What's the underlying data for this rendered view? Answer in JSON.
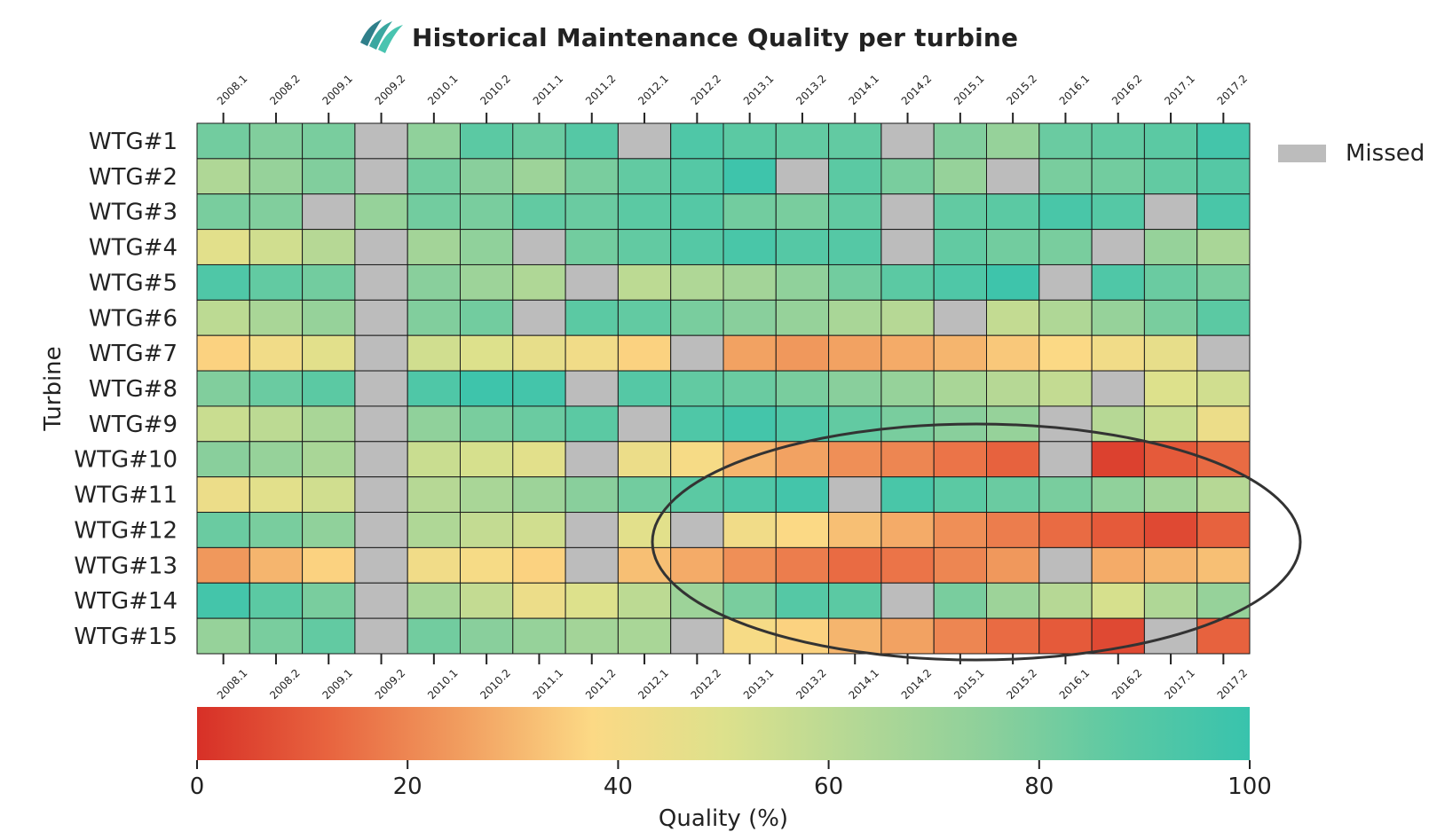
{
  "chart_data": {
    "type": "heatmap",
    "title": "Historical Maintenance Quality per turbine",
    "ylabel": "Turbine",
    "colorbar_label": "Quality (%)",
    "colorbar_range": [
      0,
      100
    ],
    "colorbar_ticks": [
      "0",
      "20",
      "40",
      "60",
      "80",
      "100"
    ],
    "legend": {
      "label": "Missed",
      "color": "#bcbcbc",
      "position": "top-right"
    },
    "annotation": "ellipse highlighting WTG#10–WTG#15, 2013–2017",
    "colormap": [
      "#d73027",
      "#e8643f",
      "#f19d5f",
      "#fcd985",
      "#dde18c",
      "#b4d895",
      "#8dd09b",
      "#5cc9a3",
      "#38c3ad"
    ],
    "columns": [
      "2008.1",
      "2008.2",
      "2009.1",
      "2009.2",
      "2010.1",
      "2010.2",
      "2011.1",
      "2011.2",
      "2012.1",
      "2012.2",
      "2013.1",
      "2013.2",
      "2014.1",
      "2014.2",
      "2015.1",
      "2015.2",
      "2016.1",
      "2016.2",
      "2017.1",
      "2017.2"
    ],
    "rows": [
      "WTG#1",
      "WTG#2",
      "WTG#3",
      "WTG#4",
      "WTG#5",
      "WTG#6",
      "WTG#7",
      "WTG#8",
      "WTG#9",
      "WTG#10",
      "WTG#11",
      "WTG#12",
      "WTG#13",
      "WTG#14",
      "WTG#15"
    ],
    "values": [
      [
        82,
        78,
        80,
        null,
        74,
        88,
        84,
        90,
        null,
        92,
        88,
        86,
        86,
        null,
        78,
        72,
        84,
        86,
        88,
        96
      ],
      [
        64,
        72,
        78,
        null,
        82,
        76,
        70,
        80,
        86,
        90,
        98,
        null,
        88,
        80,
        72,
        null,
        80,
        82,
        86,
        90
      ],
      [
        80,
        78,
        null,
        72,
        82,
        80,
        86,
        84,
        88,
        90,
        82,
        80,
        86,
        null,
        86,
        88,
        94,
        90,
        null,
        94
      ],
      [
        48,
        54,
        62,
        null,
        68,
        74,
        null,
        82,
        86,
        90,
        94,
        90,
        90,
        null,
        86,
        82,
        80,
        null,
        72,
        66
      ],
      [
        92,
        86,
        82,
        null,
        76,
        70,
        64,
        null,
        60,
        64,
        68,
        74,
        82,
        88,
        92,
        98,
        null,
        92,
        84,
        80
      ],
      [
        60,
        66,
        72,
        null,
        78,
        82,
        null,
        88,
        86,
        80,
        76,
        72,
        66,
        62,
        null,
        58,
        64,
        72,
        80,
        88
      ],
      [
        36,
        42,
        48,
        null,
        54,
        50,
        46,
        42,
        36,
        null,
        26,
        24,
        26,
        28,
        30,
        34,
        38,
        42,
        46,
        null
      ],
      [
        78,
        84,
        88,
        null,
        92,
        98,
        96,
        null,
        90,
        86,
        84,
        80,
        76,
        72,
        66,
        62,
        58,
        null,
        50,
        54
      ],
      [
        56,
        60,
        66,
        null,
        74,
        80,
        84,
        88,
        null,
        92,
        96,
        92,
        86,
        80,
        76,
        72,
        null,
        62,
        56,
        44
      ],
      [
        76,
        72,
        66,
        null,
        56,
        52,
        48,
        null,
        44,
        40,
        30,
        26,
        22,
        20,
        16,
        12,
        null,
        4,
        10,
        14
      ],
      [
        44,
        48,
        54,
        null,
        62,
        66,
        70,
        76,
        82,
        88,
        92,
        96,
        null,
        94,
        88,
        84,
        80,
        74,
        68,
        62
      ],
      [
        84,
        80,
        74,
        null,
        64,
        58,
        54,
        null,
        48,
        null,
        42,
        38,
        32,
        28,
        22,
        18,
        14,
        10,
        6,
        12
      ],
      [
        24,
        30,
        36,
        null,
        42,
        40,
        36,
        null,
        32,
        28,
        22,
        18,
        14,
        16,
        20,
        24,
        null,
        28,
        30,
        32
      ],
      [
        96,
        88,
        80,
        null,
        66,
        58,
        44,
        50,
        60,
        70,
        80,
        90,
        88,
        null,
        80,
        70,
        62,
        52,
        64,
        72
      ],
      [
        72,
        80,
        86,
        null,
        82,
        76,
        72,
        68,
        66,
        null,
        40,
        36,
        30,
        26,
        20,
        14,
        10,
        6,
        null,
        12
      ]
    ]
  }
}
